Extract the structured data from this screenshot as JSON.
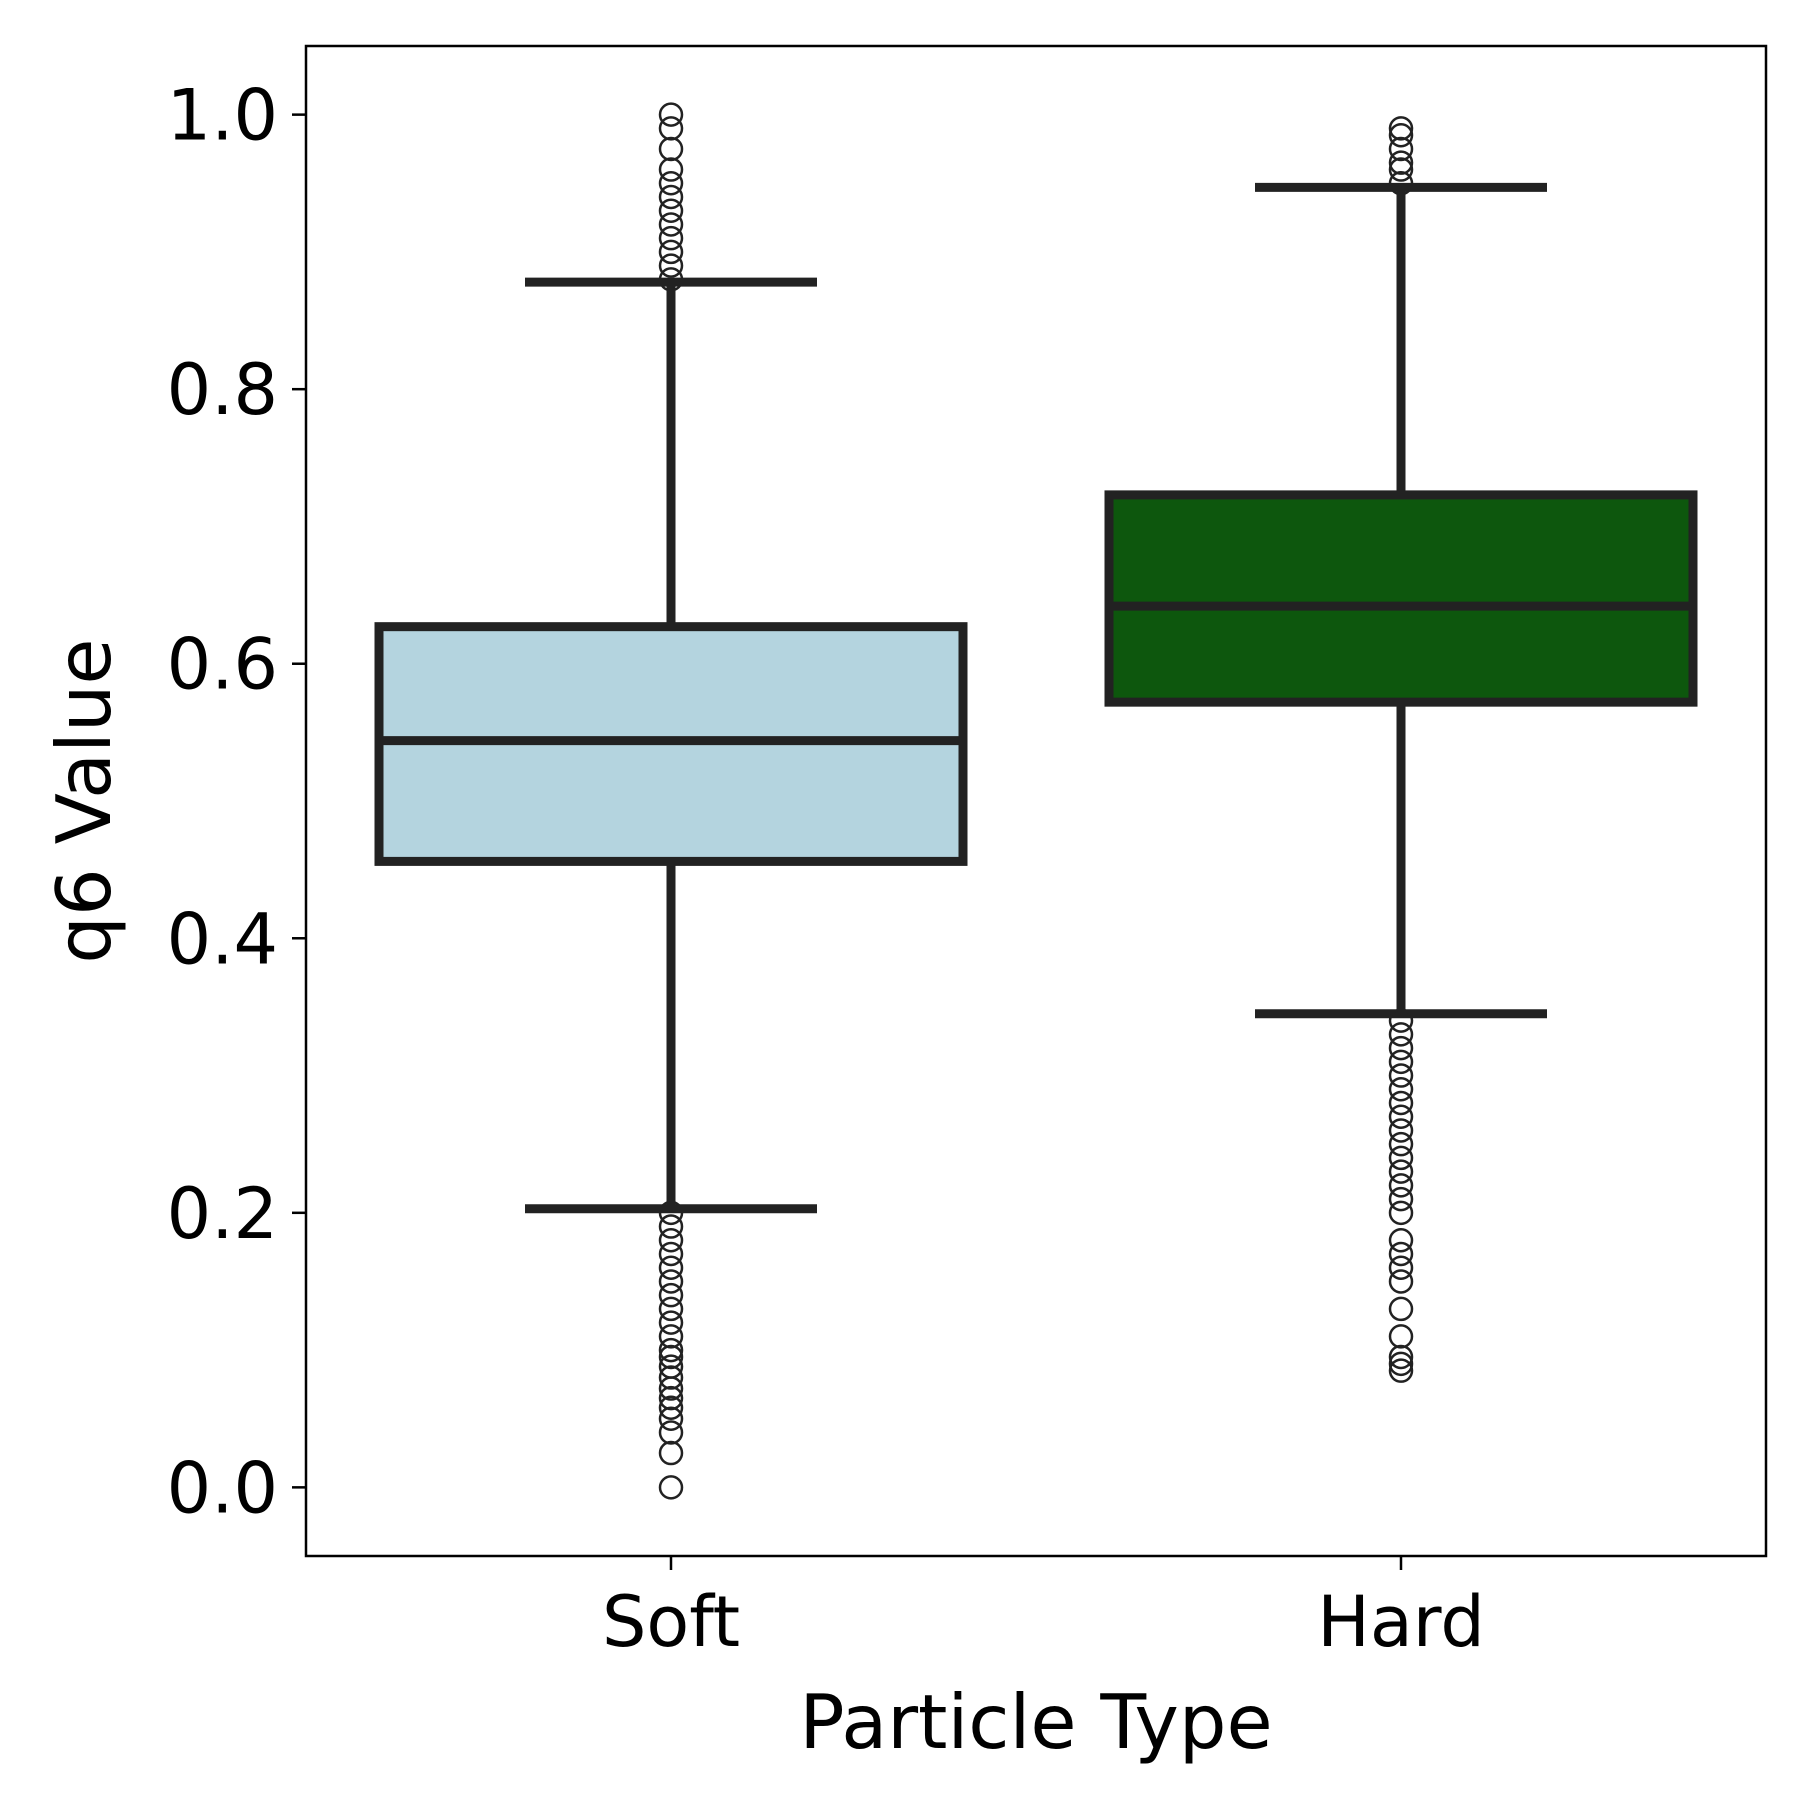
{
  "chart_data": {
    "type": "box",
    "title": "",
    "xlabel": "Particle Type",
    "ylabel": "q6 Value",
    "ylim": [
      -0.05,
      1.05
    ],
    "yticks": [
      "0.0",
      "0.2",
      "0.4",
      "0.6",
      "0.8",
      "1.0"
    ],
    "grid": false,
    "legend": "none",
    "categories": [
      "Soft",
      "Hard"
    ],
    "boxes": [
      {
        "category": "Soft",
        "color": "#b4d4df",
        "whisker_low": 0.203,
        "q1": 0.456,
        "median": 0.544,
        "q3": 0.627,
        "whisker_high": 0.878,
        "outliers": [
          0.0,
          0.025,
          0.04,
          0.05,
          0.058,
          0.065,
          0.072,
          0.08,
          0.088,
          0.095,
          0.1,
          0.11,
          0.12,
          0.13,
          0.14,
          0.15,
          0.16,
          0.17,
          0.18,
          0.19,
          0.2,
          0.88,
          0.89,
          0.9,
          0.91,
          0.92,
          0.93,
          0.94,
          0.95,
          0.96,
          0.975,
          0.99,
          1.0
        ]
      },
      {
        "category": "Hard",
        "color": "#0d570d",
        "whisker_low": 0.345,
        "q1": 0.572,
        "median": 0.642,
        "q3": 0.723,
        "whisker_high": 0.947,
        "outliers": [
          0.085,
          0.09,
          0.095,
          0.11,
          0.13,
          0.15,
          0.16,
          0.17,
          0.18,
          0.2,
          0.21,
          0.22,
          0.23,
          0.24,
          0.25,
          0.26,
          0.27,
          0.28,
          0.29,
          0.3,
          0.31,
          0.32,
          0.33,
          0.34,
          0.95,
          0.96,
          0.965,
          0.975,
          0.985,
          0.99
        ]
      }
    ]
  }
}
